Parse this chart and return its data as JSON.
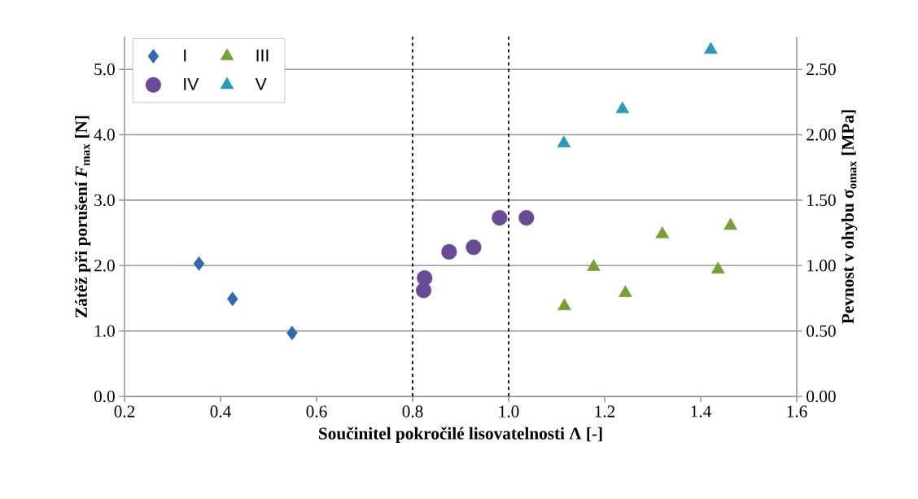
{
  "chart_data": {
    "type": "scatter",
    "xlabel": "Součinitel pokročilé lisovatelnosti Λ [-]",
    "ylabel": "Zátěž při porušení *F*$_{max}$ [N]",
    "y2label": "Pevnost v ohybu σ$_{omax}$ [MPa]",
    "series": [
      {
        "name": "I",
        "color": "#2e6bb0",
        "marker": "diamond",
        "x": [
          0.355,
          0.425,
          0.549
        ],
        "values": [
          2.03,
          1.49,
          0.97
        ]
      },
      {
        "name": "III",
        "color": "#77a033",
        "marker": "triangle",
        "x": [
          1.116,
          1.177,
          1.243,
          1.32,
          1.436,
          1.462
        ],
        "values": [
          1.38,
          1.98,
          1.58,
          2.48,
          1.94,
          2.61
        ]
      },
      {
        "name": "IV",
        "color": "#6a4a95",
        "marker": "circle",
        "x": [
          0.825,
          0.823,
          0.876,
          0.927,
          0.981,
          1.037
        ],
        "values": [
          1.81,
          1.62,
          2.21,
          2.28,
          2.73,
          2.73
        ]
      },
      {
        "name": "V",
        "color": "#2a9ab8",
        "marker": "triangle",
        "x": [
          1.115,
          1.237,
          1.421
        ],
        "values": [
          3.87,
          4.39,
          5.3
        ]
      }
    ],
    "xlim": [
      0.2,
      1.6
    ],
    "xticks": [
      0.2,
      0.4,
      0.6,
      0.8,
      {
        "value": 1.0,
        "label": "1.0"
      },
      1.2,
      1.4,
      1.6
    ],
    "ylim": [
      0,
      5.5
    ],
    "yticks": [
      {
        "value": 0,
        "label": "0.0"
      },
      {
        "value": 1,
        "label": "1.0"
      },
      {
        "value": 2,
        "label": "2.0"
      },
      {
        "value": 3,
        "label": "3.0"
      },
      {
        "value": 4,
        "label": "4.0"
      },
      {
        "value": 5,
        "label": "5.0"
      }
    ],
    "y2lim": [
      0,
      2.75
    ],
    "y2ticks": [
      {
        "value": 0,
        "label": "0.00"
      },
      {
        "value": 0.5,
        "label": "0.50"
      },
      {
        "value": 1,
        "label": "1.00"
      },
      {
        "value": 1.5,
        "label": "1.50"
      },
      {
        "value": 2,
        "label": "2.00"
      },
      {
        "value": 2.5,
        "label": "2.50"
      }
    ],
    "ref_lines": [
      {
        "axis": "x",
        "value": 0.8,
        "color": "#000000",
        "line_style": "dashed"
      },
      {
        "axis": "x",
        "value": 1.0,
        "color": "#000000",
        "line_style": "dashed"
      }
    ],
    "grid": "y",
    "legend": "top left"
  }
}
